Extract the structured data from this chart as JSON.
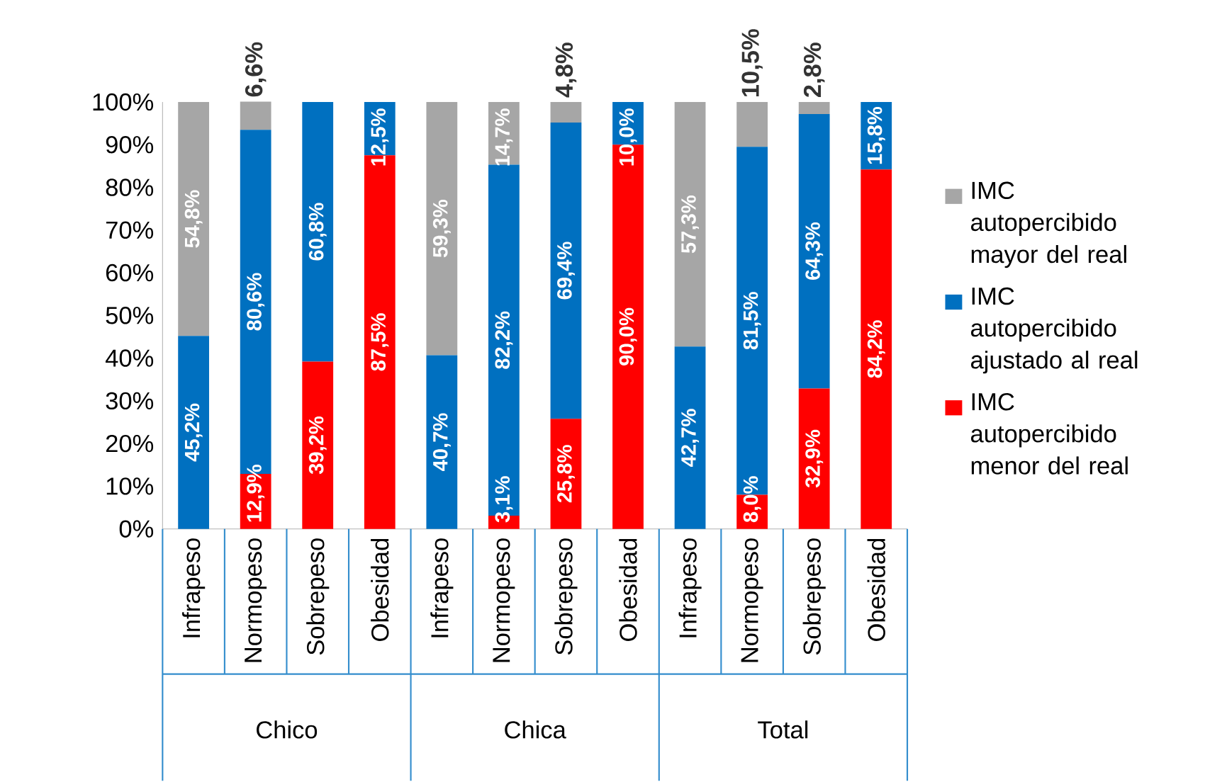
{
  "chart_data": {
    "type": "bar",
    "stacked": true,
    "categories": [
      "Infrapeso",
      "Normopeso",
      "Sobrepeso",
      "Obesidad",
      "Infrapeso",
      "Normopeso",
      "Sobrepeso",
      "Obesidad",
      "Infrapeso",
      "Normopeso",
      "Sobrepeso",
      "Obesidad"
    ],
    "series": [
      {
        "name": "IMC autopercibido menor del real",
        "color": "#ff0000",
        "values": [
          0,
          12.9,
          39.2,
          87.5,
          0,
          3.1,
          25.8,
          90.0,
          0,
          8.0,
          32.9,
          84.2
        ],
        "value_labels": [
          null,
          "12,9%",
          "39,2%",
          "87,5%",
          null,
          "3,1%",
          "25,8%",
          "90,0%",
          null,
          "8,0%",
          "32,9%",
          "84,2%"
        ]
      },
      {
        "name": "IMC autopercibido ajustado al real",
        "color": "#0070c0",
        "values": [
          45.2,
          80.6,
          60.8,
          12.5,
          40.7,
          82.2,
          69.4,
          10.0,
          42.7,
          81.5,
          64.3,
          15.8
        ],
        "value_labels": [
          "45,2%",
          "80,6%",
          "60,8%",
          "12,5%",
          "40,7%",
          "82,2%",
          "69,4%",
          "10,0%",
          "42,7%",
          "81,5%",
          "64,3%",
          "15,8%"
        ]
      },
      {
        "name": "IMC autopercibido mayor del real",
        "color": "#a6a6a6",
        "values": [
          54.8,
          6.6,
          0,
          0,
          59.3,
          14.7,
          4.8,
          0,
          57.3,
          10.5,
          2.8,
          0
        ],
        "value_labels": [
          "54,8%",
          "6,6%",
          null,
          null,
          "59,3%",
          "14,7%",
          "4,8%",
          null,
          "57,3%",
          "10,5%",
          "2,8%",
          null
        ]
      }
    ],
    "ylim": [
      0,
      100
    ],
    "yticks": [
      {
        "value": 0,
        "label": "0%"
      },
      {
        "value": 10,
        "label": "10%"
      },
      {
        "value": 20,
        "label": "20%"
      },
      {
        "value": 30,
        "label": "30%"
      },
      {
        "value": 40,
        "label": "40%"
      },
      {
        "value": 50,
        "label": "50%"
      },
      {
        "value": 60,
        "label": "60%"
      },
      {
        "value": 70,
        "label": "70%"
      },
      {
        "value": 80,
        "label": "80%"
      },
      {
        "value": 90,
        "label": "90%"
      },
      {
        "value": 100,
        "label": "100%"
      }
    ],
    "legend": "right",
    "annotations": [
      "Chico",
      "Chica",
      "Total"
    ]
  }
}
